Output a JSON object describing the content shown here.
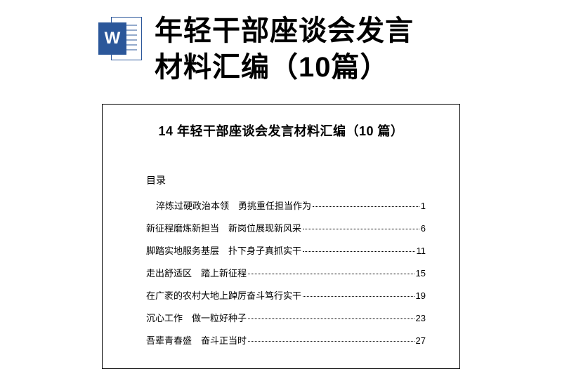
{
  "header": {
    "title_line1": "年轻干部座谈会发言",
    "title_line2": "材料汇编（10篇）",
    "icon_letter": "W"
  },
  "document": {
    "title": "14 年轻干部座谈会发言材料汇编（10 篇）",
    "toc_label": "目录",
    "toc": [
      {
        "text": "淬炼过硬政治本领　勇挑重任担当作为",
        "page": "1"
      },
      {
        "text": "新征程磨炼新担当　新岗位展现新风采",
        "page": "6"
      },
      {
        "text": "脚踏实地服务基层　扑下身子真抓实干",
        "page": "11"
      },
      {
        "text": "走出舒适区　踏上新征程",
        "page": "15"
      },
      {
        "text": "在广袤的农村大地上踔厉奋斗笃行实干",
        "page": "19"
      },
      {
        "text": "沉心工作　做一粒好种子",
        "page": "23"
      },
      {
        "text": "吾辈青春盛　奋斗正当时",
        "page": "27"
      }
    ]
  },
  "colors": {
    "word_blue": "#2b579a",
    "text": "#000000",
    "background": "#ffffff"
  }
}
